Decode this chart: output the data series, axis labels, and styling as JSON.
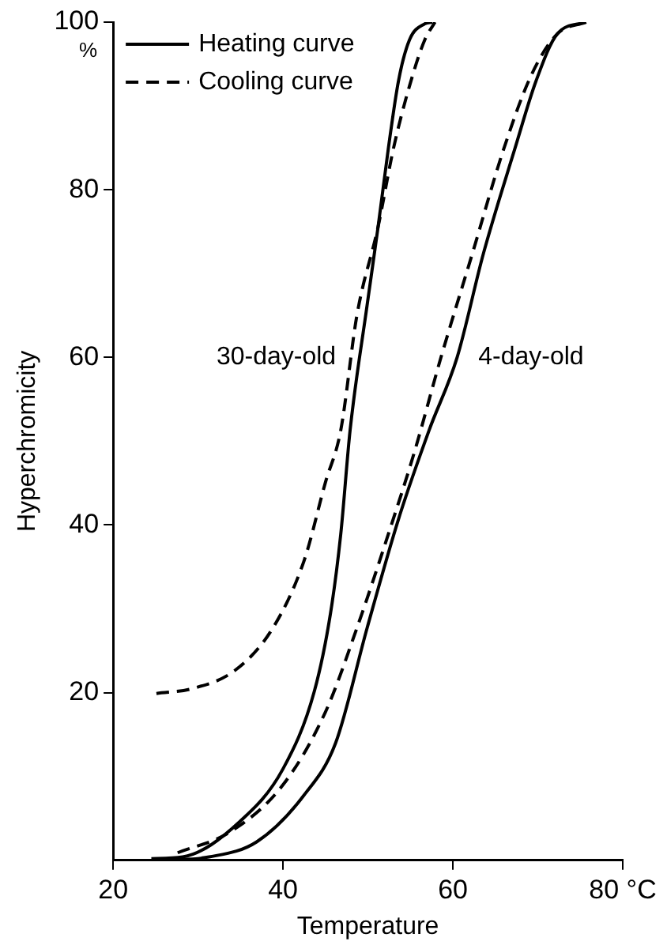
{
  "chart_data": {
    "type": "line",
    "xlabel": "Temperature",
    "ylabel": "Hyperchromicity",
    "xlim": [
      20,
      80
    ],
    "xticks": [
      20,
      40,
      60,
      {
        "value": 80,
        "label": "80 °C"
      }
    ],
    "ylim": [
      0,
      100
    ],
    "yticks": [
      20,
      40,
      60,
      80,
      100
    ],
    "grid": false,
    "legend": "top left",
    "marker": "none",
    "annotations": [
      "%",
      "30-day-old",
      "4-day-old"
    ],
    "series": [
      {
        "name": "Heating curve",
        "color": "#000000",
        "line_style": "solid",
        "x": [
          24.5,
          28.2,
          35,
          40,
          43.7,
          45.6,
          46.8,
          47.9,
          49.9,
          51.2,
          52.4,
          53.6,
          54.9,
          56.7,
          57.6
        ],
        "values": [
          0.2,
          0.4,
          4.7,
          10.9,
          20.2,
          29.5,
          38.9,
          51.3,
          66.2,
          75.6,
          84.9,
          93,
          97.9,
          99.8,
          100
        ]
      },
      {
        "name": "Cooling curve",
        "color": "#000000",
        "line_style": "dashed",
        "x": [
          25.1,
          29.4,
          34.4,
          38.8,
          42.5,
          45,
          46.8,
          48.7,
          51.2,
          53,
          54.9,
          56.7,
          57.9
        ],
        "values": [
          19.9,
          20.5,
          22.7,
          27.7,
          35.8,
          45.1,
          51.3,
          65,
          75.6,
          84.9,
          92.4,
          97.9,
          100
        ]
      },
      {
        "color": "#000000",
        "line_style": "solid",
        "x": [
          26.3,
          31.3,
          36.9,
          42.5,
          46.2,
          49.9,
          53.6,
          57.2,
          60.5,
          63.6,
          67.3,
          69.8,
          72.3,
          75.7
        ],
        "values": [
          0,
          0.4,
          2.2,
          7.8,
          14,
          27.7,
          40.7,
          51.3,
          60,
          72.4,
          84.9,
          93,
          98.6,
          100
        ]
      },
      {
        "color": "#000000",
        "line_style": "dashed",
        "x": [
          27.6,
          33.8,
          40,
          45,
          48.7,
          52.4,
          55.5,
          58.6,
          62.3,
          66,
          69.2,
          72.3,
          75.7
        ],
        "values": [
          0.9,
          3.4,
          9,
          17.7,
          27.7,
          38.9,
          48.8,
          60,
          72.4,
          84.9,
          93.6,
          98.6,
          100
        ]
      }
    ]
  }
}
